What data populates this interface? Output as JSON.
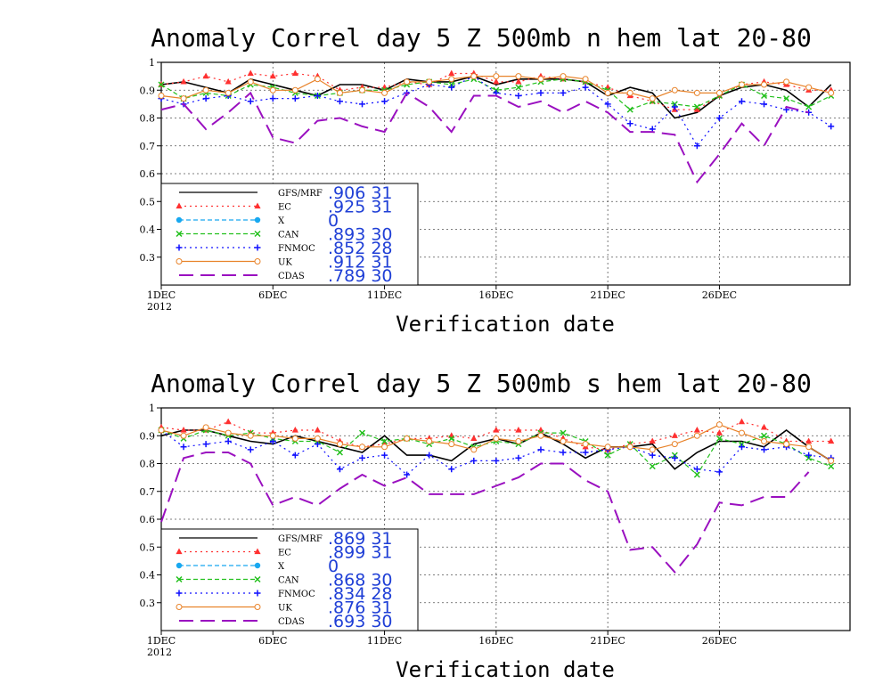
{
  "colors": {
    "gfs": "#000000",
    "ec": "#ff3030",
    "x": "#18a8f0",
    "can": "#22c01c",
    "fnmoc": "#1010ff",
    "uk": "#e8832a",
    "cdas": "#9a10c0",
    "value_text": "#1f3fd6"
  },
  "icons": {
    "gfs": "none",
    "ec": "filled-triangle",
    "x": "filled-circle",
    "can": "x-mark",
    "fnmoc": "plus",
    "uk": "open-circle",
    "cdas": "none"
  },
  "chart_data": [
    {
      "type": "line",
      "title": "Anomaly Correl  day 5  Z 500mb  n hem  lat 20-80",
      "xlabel": "Verification date",
      "ylabel": "",
      "ylim": [
        0.2,
        1.0
      ],
      "yticks": [
        "1",
        "0.9",
        "0.8",
        "0.7",
        "0.6",
        "0.5",
        "0.4",
        "0.3"
      ],
      "ytick_values": [
        1.0,
        0.9,
        0.8,
        0.7,
        0.6,
        0.5,
        0.4,
        0.3
      ],
      "xlim": [
        1,
        31
      ],
      "xticks": [
        "1DEC",
        "6DEC",
        "11DEC",
        "16DEC",
        "21DEC",
        "26DEC"
      ],
      "xtick_values": [
        1,
        6,
        11,
        16,
        21,
        26
      ],
      "year_label": "2012",
      "grid": true,
      "legend_position": "bottom-left",
      "series": [
        {
          "key": "gfs",
          "name": "GFS/MRF",
          "stats": ".906 31",
          "style": "solid",
          "marker": "none",
          "x": [
            1,
            2,
            3,
            4,
            5,
            6,
            7,
            8,
            9,
            10,
            11,
            12,
            13,
            14,
            15,
            16,
            17,
            18,
            19,
            20,
            21,
            22,
            23,
            24,
            25,
            26,
            27,
            28,
            29,
            30,
            31
          ],
          "values": [
            0.92,
            0.93,
            0.91,
            0.89,
            0.94,
            0.92,
            0.9,
            0.88,
            0.92,
            0.92,
            0.9,
            0.94,
            0.93,
            0.93,
            0.95,
            0.92,
            0.94,
            0.94,
            0.94,
            0.93,
            0.88,
            0.91,
            0.89,
            0.8,
            0.82,
            0.88,
            0.91,
            0.92,
            0.9,
            0.84,
            0.92
          ]
        },
        {
          "key": "ec",
          "name": "EC",
          "stats": ".925 31",
          "style": "dotted",
          "marker": "filled-triangle",
          "x": [
            1,
            2,
            3,
            4,
            5,
            6,
            7,
            8,
            9,
            10,
            11,
            12,
            13,
            14,
            15,
            16,
            17,
            18,
            19,
            20,
            21,
            22,
            23,
            24,
            25,
            26,
            27,
            28,
            29,
            30,
            31
          ],
          "values": [
            0.92,
            0.93,
            0.95,
            0.93,
            0.96,
            0.95,
            0.96,
            0.95,
            0.9,
            0.91,
            0.91,
            0.93,
            0.92,
            0.96,
            0.96,
            0.93,
            0.93,
            0.95,
            0.94,
            0.93,
            0.91,
            0.88,
            0.86,
            0.83,
            0.83,
            0.88,
            0.92,
            0.93,
            0.92,
            0.9,
            0.9
          ]
        },
        {
          "key": "x",
          "name": "X",
          "stats": "0",
          "style": "dashed",
          "marker": "filled-circle",
          "x": [],
          "values": []
        },
        {
          "key": "can",
          "name": "CAN",
          "stats": ".893 30",
          "style": "dashed",
          "marker": "x-mark",
          "x": [
            1,
            2,
            3,
            4,
            5,
            6,
            7,
            8,
            9,
            10,
            11,
            12,
            13,
            14,
            15,
            16,
            17,
            18,
            19,
            20,
            21,
            22,
            23,
            24,
            25,
            26,
            27,
            28,
            29,
            30,
            31
          ],
          "values": [
            0.92,
            0.87,
            0.89,
            0.88,
            0.92,
            0.91,
            0.89,
            0.88,
            0.89,
            0.9,
            0.9,
            0.92,
            0.93,
            0.92,
            0.94,
            0.9,
            0.91,
            0.93,
            0.94,
            0.93,
            0.9,
            0.83,
            0.86,
            0.85,
            0.84,
            0.88,
            0.92,
            0.88,
            0.87,
            0.84,
            0.88
          ]
        },
        {
          "key": "fnmoc",
          "name": "FNMOC",
          "stats": ".852 28",
          "style": "dotted",
          "marker": "plus",
          "x": [
            1,
            2,
            3,
            4,
            5,
            6,
            7,
            8,
            9,
            10,
            11,
            12,
            13,
            14,
            15,
            16,
            17,
            18,
            19,
            20,
            21,
            22,
            23,
            24,
            25,
            26,
            27,
            28,
            29,
            30,
            31
          ],
          "values": [
            0.87,
            0.85,
            0.87,
            0.88,
            0.86,
            0.87,
            0.87,
            0.88,
            0.86,
            0.85,
            0.86,
            0.89,
            0.92,
            0.91,
            0.95,
            0.89,
            0.88,
            0.89,
            0.89,
            0.91,
            0.85,
            0.78,
            0.76,
            0.84,
            0.7,
            0.8,
            0.86,
            0.85,
            0.83,
            0.82,
            0.77
          ]
        },
        {
          "key": "uk",
          "name": "UK",
          "stats": ".912 31",
          "style": "solid",
          "marker": "open-circle",
          "x": [
            1,
            2,
            3,
            4,
            5,
            6,
            7,
            8,
            9,
            10,
            11,
            12,
            13,
            14,
            15,
            16,
            17,
            18,
            19,
            20,
            21,
            22,
            23,
            24,
            25,
            26,
            27,
            28,
            29,
            30,
            31
          ],
          "values": [
            0.88,
            0.87,
            0.9,
            0.89,
            0.93,
            0.9,
            0.9,
            0.94,
            0.89,
            0.9,
            0.89,
            0.93,
            0.93,
            0.94,
            0.95,
            0.95,
            0.95,
            0.94,
            0.95,
            0.94,
            0.89,
            0.89,
            0.87,
            0.9,
            0.89,
            0.89,
            0.92,
            0.92,
            0.93,
            0.91,
            0.89
          ]
        },
        {
          "key": "cdas",
          "name": "CDAS",
          "stats": ".789 30",
          "style": "long-dash",
          "marker": "none",
          "x": [
            1,
            2,
            3,
            4,
            5,
            6,
            7,
            8,
            9,
            10,
            11,
            12,
            13,
            14,
            15,
            16,
            17,
            18,
            19,
            20,
            21,
            22,
            23,
            24,
            25,
            26,
            27,
            28,
            29,
            30
          ],
          "values": [
            0.83,
            0.85,
            0.76,
            0.82,
            0.89,
            0.73,
            0.71,
            0.79,
            0.8,
            0.77,
            0.75,
            0.89,
            0.84,
            0.75,
            0.88,
            0.88,
            0.84,
            0.86,
            0.82,
            0.86,
            0.82,
            0.75,
            0.75,
            0.74,
            0.57,
            0.67,
            0.78,
            0.7,
            0.84,
            0.82
          ]
        }
      ]
    },
    {
      "type": "line",
      "title": "Anomaly Correl  day 5  Z 500mb  s hem  lat 20-80",
      "xlabel": "Verification date",
      "ylabel": "",
      "ylim": [
        0.2,
        1.0
      ],
      "yticks": [
        "1",
        "0.9",
        "0.8",
        "0.7",
        "0.6",
        "0.5",
        "0.4",
        "0.3"
      ],
      "ytick_values": [
        1.0,
        0.9,
        0.8,
        0.7,
        0.6,
        0.5,
        0.4,
        0.3
      ],
      "xlim": [
        1,
        31
      ],
      "xticks": [
        "1DEC",
        "6DEC",
        "11DEC",
        "16DEC",
        "21DEC",
        "26DEC"
      ],
      "xtick_values": [
        1,
        6,
        11,
        16,
        21,
        26
      ],
      "year_label": "2012",
      "grid": true,
      "legend_position": "bottom-left",
      "series": [
        {
          "key": "gfs",
          "name": "GFS/MRF",
          "stats": ".869 31",
          "style": "solid",
          "marker": "none",
          "x": [
            1,
            2,
            3,
            4,
            5,
            6,
            7,
            8,
            9,
            10,
            11,
            12,
            13,
            14,
            15,
            16,
            17,
            18,
            19,
            20,
            21,
            22,
            23,
            24,
            25,
            26,
            27,
            28,
            29,
            30,
            31
          ],
          "values": [
            0.9,
            0.92,
            0.92,
            0.9,
            0.88,
            0.87,
            0.9,
            0.88,
            0.86,
            0.84,
            0.9,
            0.83,
            0.83,
            0.81,
            0.87,
            0.89,
            0.87,
            0.91,
            0.87,
            0.82,
            0.86,
            0.86,
            0.87,
            0.78,
            0.84,
            0.88,
            0.88,
            0.86,
            0.92,
            0.86,
            0.81
          ]
        },
        {
          "key": "ec",
          "name": "EC",
          "stats": ".899 31",
          "style": "dotted",
          "marker": "filled-triangle",
          "x": [
            1,
            2,
            3,
            4,
            5,
            6,
            7,
            8,
            9,
            10,
            11,
            12,
            13,
            14,
            15,
            16,
            17,
            18,
            19,
            20,
            21,
            22,
            23,
            24,
            25,
            26,
            27,
            28,
            29,
            30,
            31
          ],
          "values": [
            0.93,
            0.92,
            0.92,
            0.95,
            0.91,
            0.91,
            0.92,
            0.92,
            0.88,
            0.86,
            0.87,
            0.89,
            0.89,
            0.9,
            0.89,
            0.92,
            0.92,
            0.92,
            0.89,
            0.86,
            0.85,
            0.87,
            0.88,
            0.9,
            0.92,
            0.91,
            0.95,
            0.93,
            0.88,
            0.88,
            0.88
          ]
        },
        {
          "key": "x",
          "name": "X",
          "stats": "0",
          "style": "dashed",
          "marker": "filled-circle",
          "x": [],
          "values": []
        },
        {
          "key": "can",
          "name": "CAN",
          "stats": ".868 30",
          "style": "dashed",
          "marker": "x-mark",
          "x": [
            1,
            2,
            3,
            4,
            5,
            6,
            7,
            8,
            9,
            10,
            11,
            12,
            13,
            14,
            15,
            16,
            17,
            18,
            19,
            20,
            21,
            22,
            23,
            24,
            25,
            26,
            27,
            28,
            29,
            30,
            31
          ],
          "values": [
            0.92,
            0.89,
            0.92,
            0.9,
            0.91,
            0.89,
            0.88,
            0.88,
            0.84,
            0.91,
            0.88,
            0.89,
            0.87,
            0.89,
            0.86,
            0.88,
            0.87,
            0.91,
            0.91,
            0.88,
            0.83,
            0.87,
            0.79,
            0.83,
            0.76,
            0.89,
            0.87,
            0.9,
            0.87,
            0.82,
            0.79
          ]
        },
        {
          "key": "fnmoc",
          "name": "FNMOC",
          "stats": ".834 28",
          "style": "dotted",
          "marker": "plus",
          "x": [
            1,
            2,
            3,
            4,
            5,
            6,
            7,
            8,
            9,
            10,
            11,
            12,
            13,
            14,
            15,
            16,
            17,
            18,
            19,
            20,
            21,
            22,
            23,
            24,
            25,
            26,
            27,
            28,
            29,
            30,
            31
          ],
          "values": [
            0.92,
            0.86,
            0.87,
            0.88,
            0.85,
            0.88,
            0.83,
            0.87,
            0.78,
            0.82,
            0.83,
            0.76,
            0.83,
            0.78,
            0.81,
            0.81,
            0.82,
            0.85,
            0.84,
            0.84,
            0.85,
            0.86,
            0.83,
            0.82,
            0.78,
            0.77,
            0.86,
            0.85,
            0.86,
            0.83,
            0.82
          ]
        },
        {
          "key": "uk",
          "name": "UK",
          "stats": ".876 31",
          "style": "solid",
          "marker": "open-circle",
          "x": [
            1,
            2,
            3,
            4,
            5,
            6,
            7,
            8,
            9,
            10,
            11,
            12,
            13,
            14,
            15,
            16,
            17,
            18,
            19,
            20,
            21,
            22,
            23,
            24,
            25,
            26,
            27,
            28,
            29,
            30,
            31
          ],
          "values": [
            0.92,
            0.9,
            0.93,
            0.91,
            0.9,
            0.9,
            0.89,
            0.89,
            0.87,
            0.86,
            0.86,
            0.89,
            0.88,
            0.87,
            0.85,
            0.89,
            0.88,
            0.9,
            0.88,
            0.87,
            0.86,
            0.86,
            0.85,
            0.87,
            0.9,
            0.94,
            0.91,
            0.88,
            0.87,
            0.86,
            0.81
          ]
        },
        {
          "key": "cdas",
          "name": "CDAS",
          "stats": ".693 30",
          "style": "long-dash",
          "marker": "none",
          "x": [
            1,
            2,
            3,
            4,
            5,
            6,
            7,
            8,
            9,
            10,
            11,
            12,
            13,
            14,
            15,
            16,
            17,
            18,
            19,
            20,
            21,
            22,
            23,
            24,
            25,
            26,
            27,
            28,
            29,
            30
          ],
          "values": [
            0.59,
            0.82,
            0.84,
            0.84,
            0.8,
            0.65,
            0.68,
            0.65,
            0.71,
            0.76,
            0.72,
            0.75,
            0.69,
            0.69,
            0.69,
            0.72,
            0.75,
            0.8,
            0.8,
            0.74,
            0.7,
            0.49,
            0.5,
            0.41,
            0.51,
            0.66,
            0.65,
            0.68,
            0.68,
            0.77
          ]
        }
      ]
    }
  ]
}
